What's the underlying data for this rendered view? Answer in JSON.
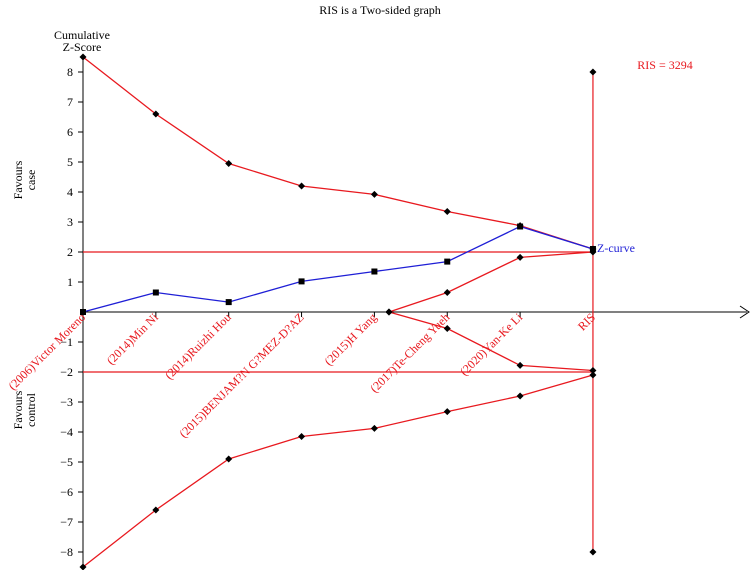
{
  "chart_data": {
    "type": "line",
    "title": "RIS is a Two-sided graph",
    "ylabel_top": "Cumulative",
    "ylabel_bottom": "Z-Score",
    "favours_case": [
      "Favours",
      "case"
    ],
    "favours_control": [
      "Favours",
      "control"
    ],
    "ylim": [
      -8.5,
      8.5
    ],
    "y_ticks": [
      8,
      7,
      6,
      5,
      4,
      3,
      2,
      1,
      -1,
      -2,
      -3,
      -4,
      -5,
      -6,
      -7,
      -8
    ],
    "categories": [
      "(2006)Victor Moreno",
      "(2014)Min Ni",
      "(2014)Ruizhi Hou",
      "(2015)BENJAM?N G?MEZ-D?AZ",
      "(2015)H Yang",
      "(2017)Te-Cheng Yueh",
      "(2020)Yan-Ke Li",
      "RIS"
    ],
    "z_curve": {
      "name": "Z-curve",
      "x": [
        0,
        1,
        2,
        3,
        4,
        5,
        6,
        7
      ],
      "values": [
        0.0,
        0.65,
        0.33,
        1.02,
        1.35,
        1.68,
        2.85,
        2.1
      ]
    },
    "upper_boundary": {
      "x": [
        0,
        1,
        2,
        3,
        4,
        5,
        6,
        7
      ],
      "values": [
        8.5,
        6.6,
        4.95,
        4.2,
        3.92,
        3.35,
        2.88,
        2.1
      ]
    },
    "lower_boundary": {
      "x": [
        0,
        1,
        2,
        3,
        4,
        5,
        6,
        7
      ],
      "values": [
        -8.5,
        -6.6,
        -4.9,
        -4.15,
        -3.88,
        -3.32,
        -2.8,
        -2.1
      ]
    },
    "futility_upper": {
      "x": [
        4.2,
        5,
        6,
        7
      ],
      "values": [
        0,
        0.65,
        1.82,
        2.0
      ]
    },
    "futility_lower": {
      "x": [
        4.2,
        5,
        6,
        7
      ],
      "values": [
        0,
        -0.55,
        -1.78,
        -1.95
      ]
    },
    "conventional_boundaries": [
      2,
      -2
    ],
    "ris_label": "RIS = 3294",
    "ris_range": [
      -8,
      8
    ],
    "colors": {
      "boundary": "#e8191f",
      "z_curve": "#1f1fd6",
      "axis": "#000000",
      "label_red": "#e8191f"
    }
  }
}
